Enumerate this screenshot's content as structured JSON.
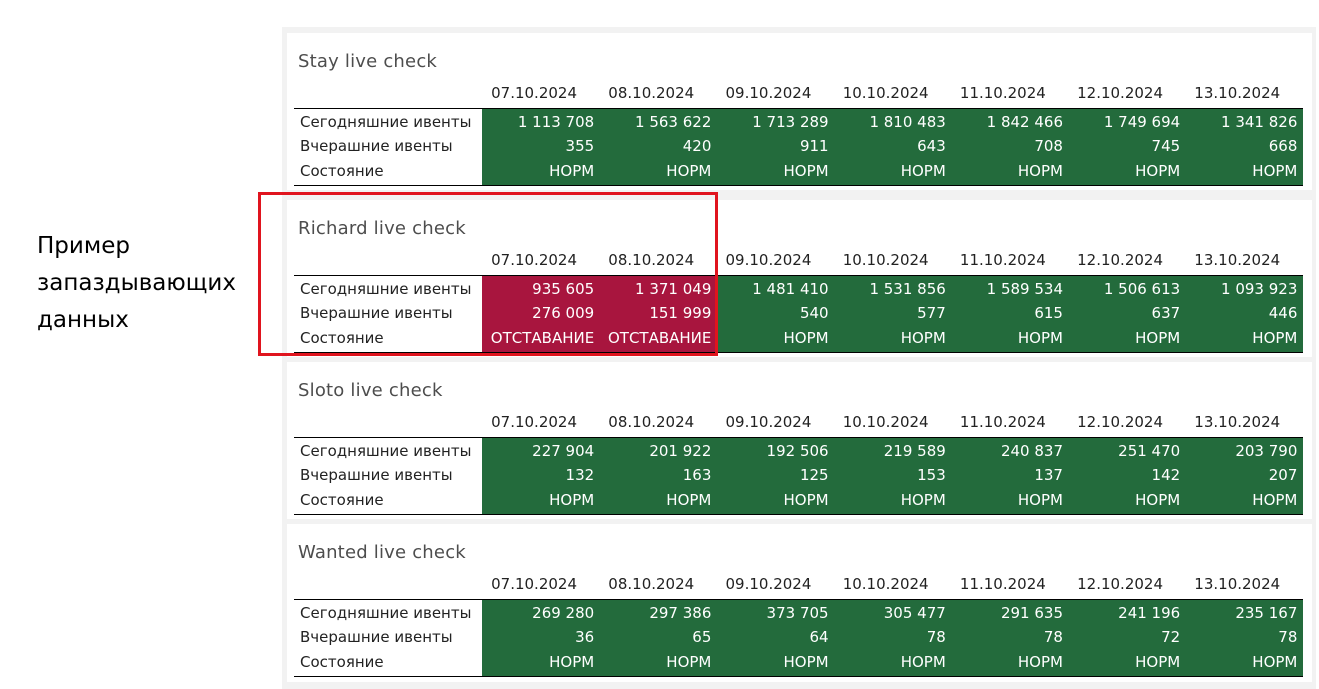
{
  "annotation": {
    "lines": [
      "Пример",
      "запаздывающих",
      "данных"
    ]
  },
  "colors": {
    "ok": "#236b3c",
    "lag": "#a8153e",
    "highlight_box": "#e0141e"
  },
  "row_labels": [
    "Сегодняшние ивенты",
    "Вчерашние ивенты",
    "Состояние"
  ],
  "dates": [
    "07.10.2024",
    "08.10.2024",
    "09.10.2024",
    "10.10.2024",
    "11.10.2024",
    "12.10.2024",
    "13.10.2024"
  ],
  "panels": [
    {
      "title": "Stay live check",
      "today": [
        "1 113 708",
        "1 563 622",
        "1 713 289",
        "1 810 483",
        "1 842 466",
        "1 749 694",
        "1 341 826"
      ],
      "yesterday": [
        "355",
        "420",
        "911",
        "643",
        "708",
        "745",
        "668"
      ],
      "status": [
        "НОРМ",
        "НОРМ",
        "НОРМ",
        "НОРМ",
        "НОРМ",
        "НОРМ",
        "НОРМ"
      ],
      "lag": [
        false,
        false,
        false,
        false,
        false,
        false,
        false
      ]
    },
    {
      "title": "Richard live check",
      "today": [
        "935 605",
        "1 371 049",
        "1 481 410",
        "1 531 856",
        "1 589 534",
        "1 506 613",
        "1 093 923"
      ],
      "yesterday": [
        "276 009",
        "151 999",
        "540",
        "577",
        "615",
        "637",
        "446"
      ],
      "status": [
        "ОТСТАВАНИЕ",
        "ОТСТАВАНИЕ",
        "НОРМ",
        "НОРМ",
        "НОРМ",
        "НОРМ",
        "НОРМ"
      ],
      "lag": [
        true,
        true,
        false,
        false,
        false,
        false,
        false
      ]
    },
    {
      "title": "Sloto live check",
      "today": [
        "227 904",
        "201 922",
        "192 506",
        "219 589",
        "240 837",
        "251 470",
        "203 790"
      ],
      "yesterday": [
        "132",
        "163",
        "125",
        "153",
        "137",
        "142",
        "207"
      ],
      "status": [
        "НОРМ",
        "НОРМ",
        "НОРМ",
        "НОРМ",
        "НОРМ",
        "НОРМ",
        "НОРМ"
      ],
      "lag": [
        false,
        false,
        false,
        false,
        false,
        false,
        false
      ]
    },
    {
      "title": "Wanted live check",
      "today": [
        "269 280",
        "297 386",
        "373 705",
        "305 477",
        "291 635",
        "241 196",
        "235 167"
      ],
      "yesterday": [
        "36",
        "65",
        "64",
        "78",
        "78",
        "72",
        "78"
      ],
      "status": [
        "НОРМ",
        "НОРМ",
        "НОРМ",
        "НОРМ",
        "НОРМ",
        "НОРМ",
        "НОРМ"
      ],
      "lag": [
        false,
        false,
        false,
        false,
        false,
        false,
        false
      ]
    }
  ]
}
